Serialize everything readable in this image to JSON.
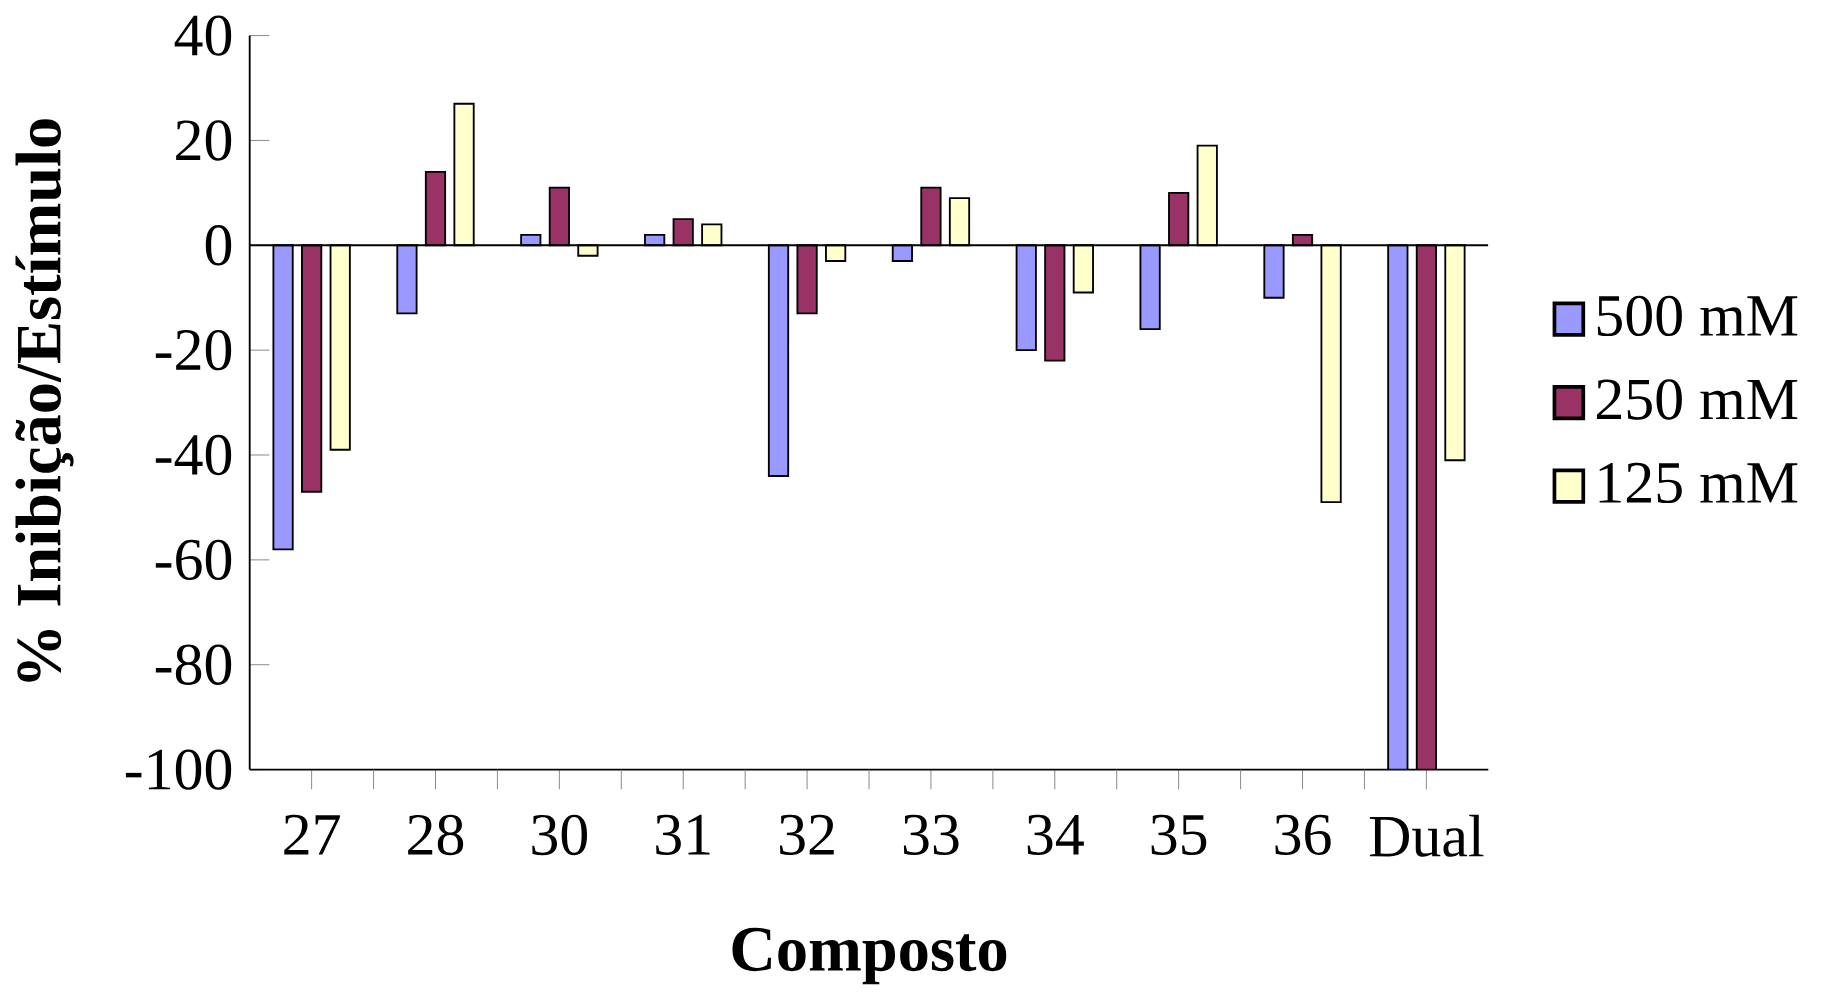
{
  "chart_data": {
    "type": "bar",
    "xlabel": "Composto",
    "ylabel": "% Inibição/Estímulo",
    "categories": [
      "27",
      "28",
      "30",
      "31",
      "32",
      "33",
      "34",
      "35",
      "36",
      "Dual"
    ],
    "series": [
      {
        "name": "500 mM",
        "color": "#9999ff",
        "values": [
          -58,
          -13,
          2,
          2,
          -44,
          -3,
          -20,
          -16,
          -10,
          -100
        ]
      },
      {
        "name": "250 mM",
        "color": "#993366",
        "values": [
          -47,
          14,
          11,
          5,
          -13,
          11,
          -22,
          10,
          2,
          -100
        ]
      },
      {
        "name": "125 mM",
        "color": "#ffffcc",
        "values": [
          -39,
          27,
          -2,
          4,
          -3,
          9,
          -9,
          19,
          -49,
          -41
        ]
      }
    ],
    "ylim": [
      -100,
      40
    ],
    "yticks": [
      -100,
      -80,
      -60,
      -40,
      -20,
      0,
      20,
      40
    ],
    "ref_lines": [
      {
        "axis": "y",
        "value": 0,
        "color": "#000000"
      }
    ],
    "grid": false,
    "legend": "right"
  }
}
